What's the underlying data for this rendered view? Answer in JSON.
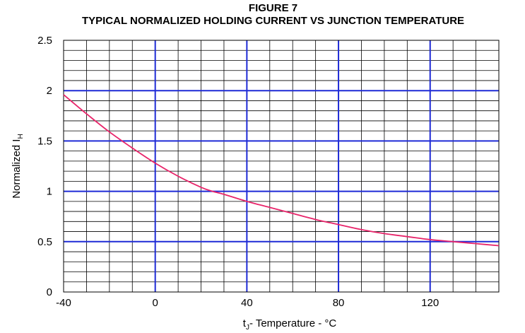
{
  "figure_label": "FIGURE 7",
  "chart_data": {
    "type": "line",
    "title": "TYPICAL NORMALIZED HOLDING CURRENT VS JUNCTION  TEMPERATURE",
    "xlabel_main": "t",
    "xlabel_sub": "J",
    "xlabel_rest": "- Temperature - °C",
    "ylabel_main": "Normalized I",
    "ylabel_sub": "H",
    "xlim": [
      -40,
      150
    ],
    "ylim": [
      0,
      2.5
    ],
    "x_ticks": [
      -40,
      0,
      40,
      80,
      120
    ],
    "x_tick_labels": [
      "-40",
      "0",
      "40",
      "80",
      "120"
    ],
    "y_ticks": [
      0,
      0.5,
      1,
      1.5,
      2,
      2.5
    ],
    "y_tick_labels": [
      "0",
      "0.5",
      "1",
      "1.5",
      "2",
      "2.5"
    ],
    "grid": true,
    "series": [
      {
        "color": "#e8246a",
        "x": [
          -40,
          -30,
          -20,
          -10,
          0,
          10,
          20,
          25,
          30,
          40,
          50,
          60,
          70,
          80,
          90,
          100,
          110,
          120,
          130,
          140,
          150
        ],
        "y": [
          1.96,
          1.77,
          1.59,
          1.43,
          1.28,
          1.15,
          1.04,
          1.0,
          0.97,
          0.9,
          0.84,
          0.78,
          0.72,
          0.67,
          0.62,
          0.58,
          0.55,
          0.52,
          0.5,
          0.48,
          0.46
        ]
      }
    ],
    "colors": {
      "major_grid": "#1f2bd6",
      "minor_grid": "#000000",
      "curve": "#e8246a"
    }
  }
}
